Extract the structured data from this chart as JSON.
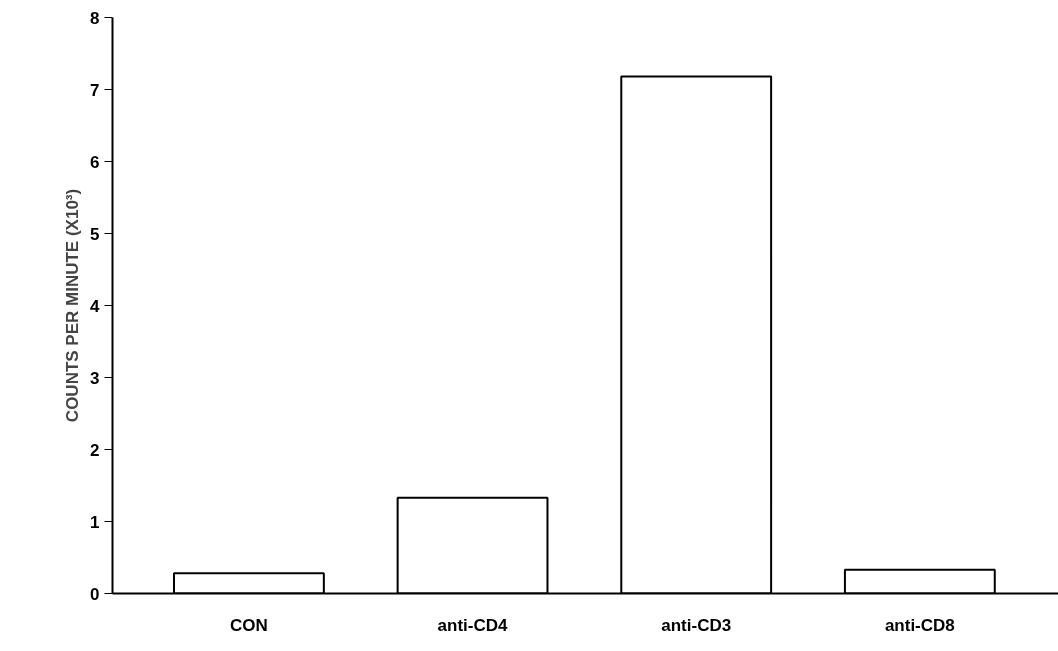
{
  "chart_data": {
    "type": "bar",
    "ylabel": "COUNTS PER MINUTE (X10³)",
    "categories": [
      "CON",
      "anti-CD4",
      "anti-CD3",
      "anti-CD8"
    ],
    "values": [
      0.28,
      1.33,
      7.18,
      0.33
    ],
    "color": "#ffffff",
    "ylim": [
      0,
      8
    ],
    "yticks": [
      0,
      1,
      2,
      3,
      4,
      5,
      6,
      7,
      8
    ],
    "grid": false
  }
}
